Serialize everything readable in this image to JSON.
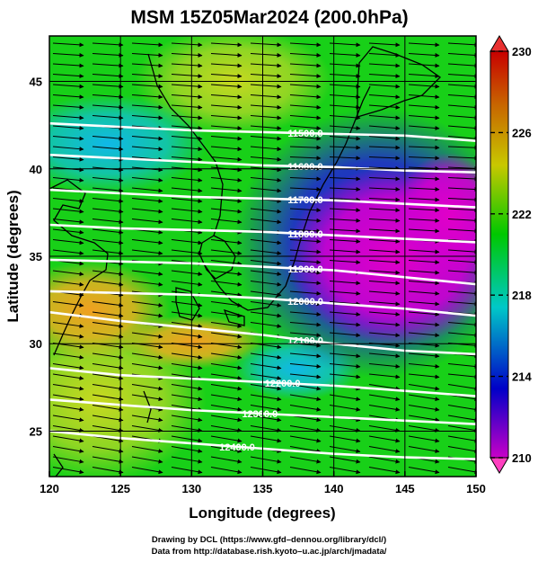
{
  "chart_data": {
    "type": "heatmap",
    "title": "MSM 15Z05Mar2024 (200.0hPa)",
    "xlabel": "Longitude (degrees)",
    "ylabel": "Latitude  (degrees)",
    "xlim": [
      120,
      150
    ],
    "ylim": [
      22.4,
      47.6
    ],
    "x_ticks": [
      "120",
      "125",
      "130",
      "135",
      "140",
      "145",
      "150"
    ],
    "y_ticks": [
      "25",
      "30",
      "35",
      "40",
      "45"
    ],
    "grid": true,
    "colorbar": {
      "range": [
        210,
        230
      ],
      "ticks": [
        "210",
        "214",
        "218",
        "222",
        "226",
        "230"
      ],
      "colors": [
        "#c800c8",
        "#0000c8",
        "#00c8c8",
        "#00c800",
        "#c8c800",
        "#c86400",
        "#c80000"
      ],
      "extend": "both"
    },
    "contours": [
      {
        "label": "11500.0",
        "value": 11500,
        "lat": [
          42.6,
          42.4,
          42.2,
          42.1,
          42.0,
          41.9,
          41.6
        ]
      },
      {
        "label": "11600.0",
        "value": 11600,
        "lat": [
          40.8,
          40.6,
          40.4,
          40.2,
          40.1,
          39.9,
          39.8
        ]
      },
      {
        "label": "11700.0",
        "value": 11700,
        "lat": [
          38.8,
          38.6,
          38.4,
          38.3,
          38.2,
          38.0,
          37.8
        ]
      },
      {
        "label": "11800.0",
        "value": 11800,
        "lat": [
          36.8,
          36.6,
          36.5,
          36.4,
          36.2,
          36.0,
          35.8
        ]
      },
      {
        "label": "11900.0",
        "value": 11900,
        "lat": [
          34.8,
          34.7,
          34.6,
          34.4,
          34.2,
          33.8,
          33.4
        ]
      },
      {
        "label": "12000.0",
        "value": 12000,
        "lat": [
          33.0,
          32.9,
          32.8,
          32.6,
          32.3,
          32.0,
          31.6
        ]
      },
      {
        "label": "12100.0",
        "value": 12100,
        "lat": [
          31.8,
          31.3,
          30.9,
          30.5,
          30.0,
          29.6,
          29.4
        ]
      },
      {
        "label": "12200.0",
        "value": 12200,
        "lat": [
          28.6,
          28.2,
          28.0,
          27.8,
          27.6,
          27.3,
          27.0
        ]
      },
      {
        "label": "12300.0",
        "value": 12300,
        "lat": [
          26.8,
          26.5,
          26.2,
          26.0,
          25.8,
          25.6,
          25.4
        ]
      },
      {
        "label": "12400.0",
        "value": 12400,
        "lat": [
          25.0,
          24.6,
          24.3,
          24.0,
          23.7,
          23.5,
          23.4
        ]
      }
    ],
    "contour_lon": [
      120,
      125,
      130,
      135,
      140,
      145,
      150
    ]
  },
  "credits": {
    "line1": "Drawing by DCL (https://www.gfd–dennou.org/library/dcl/)",
    "line2": "Data from http://database.rish.kyoto–u.ac.jp/arch/jmadata/"
  }
}
